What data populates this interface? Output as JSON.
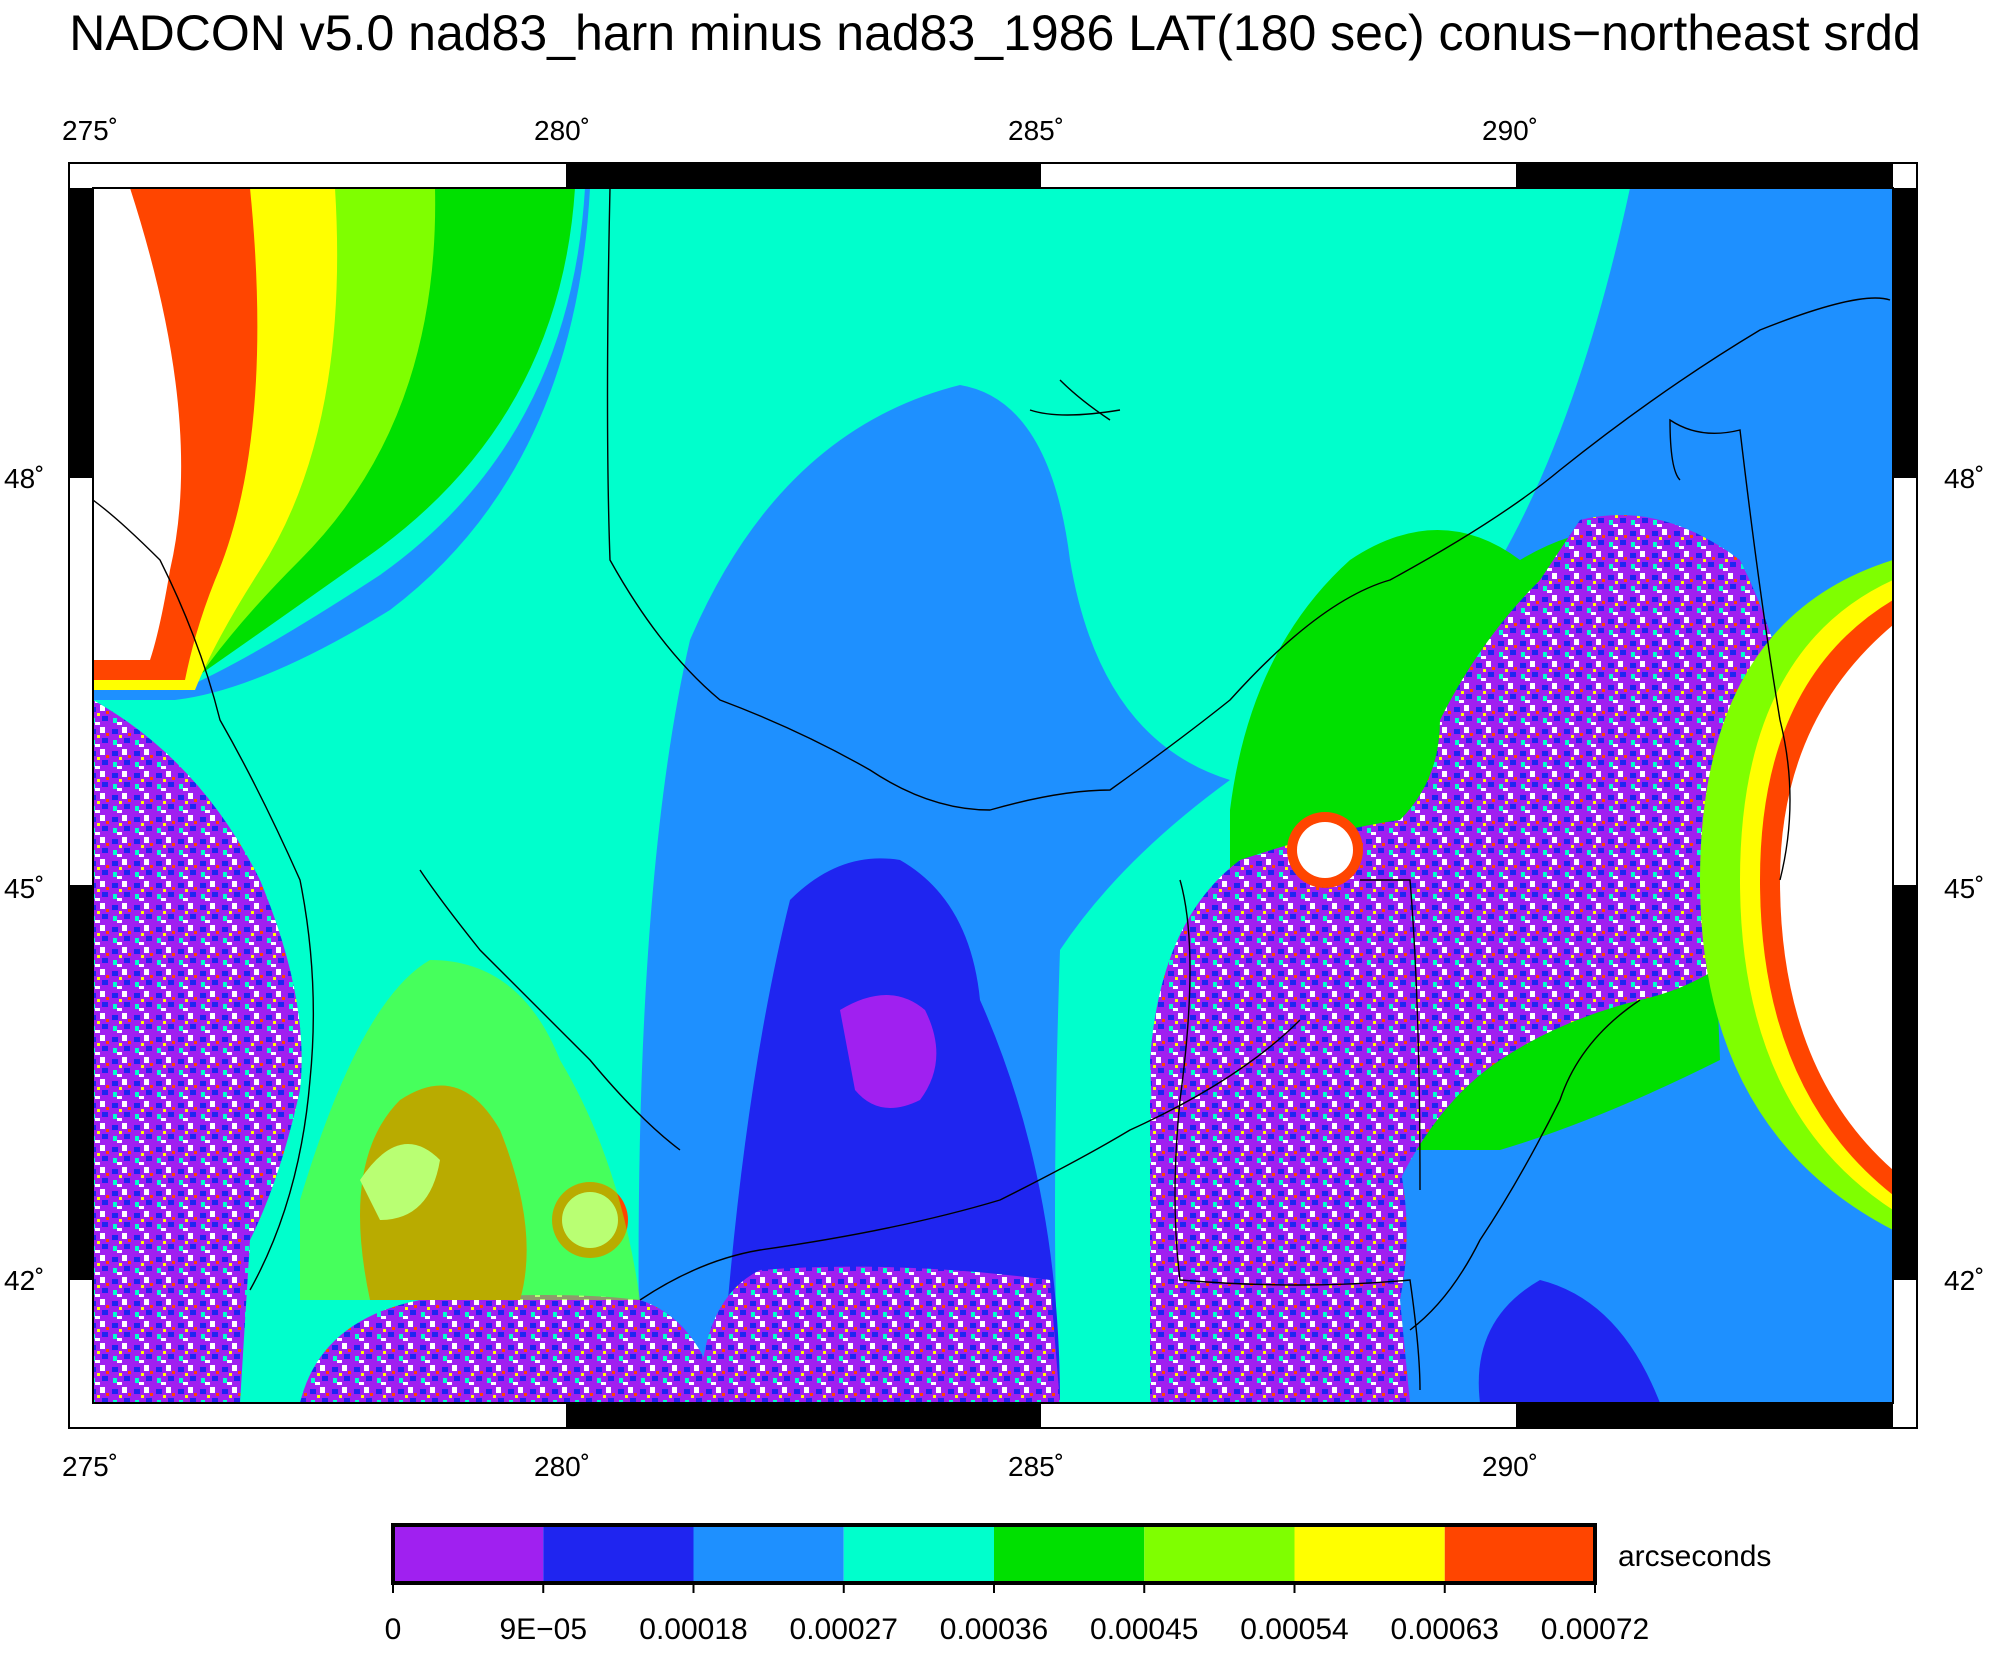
{
  "title": "NADCON v5.0 nad83_harn minus nad83_1986 LAT(180 sec) conus−northeast srdd",
  "map": {
    "lon_ticks": [
      "275˚",
      "280˚",
      "285˚",
      "290˚"
    ],
    "lat_ticks": [
      "48˚",
      "45˚",
      "42˚"
    ]
  },
  "colorbar": {
    "unit": "arcseconds",
    "tick_labels": [
      "0",
      "9E−05",
      "0.00018",
      "0.00027",
      "0.00036",
      "0.00045",
      "0.00054",
      "0.00063",
      "0.00072"
    ],
    "colors": [
      "#a020f0",
      "#1f25f0",
      "#1e90ff",
      "#00ffcc",
      "#00e000",
      "#7fff00",
      "#ffff00",
      "#ff4500"
    ]
  }
}
